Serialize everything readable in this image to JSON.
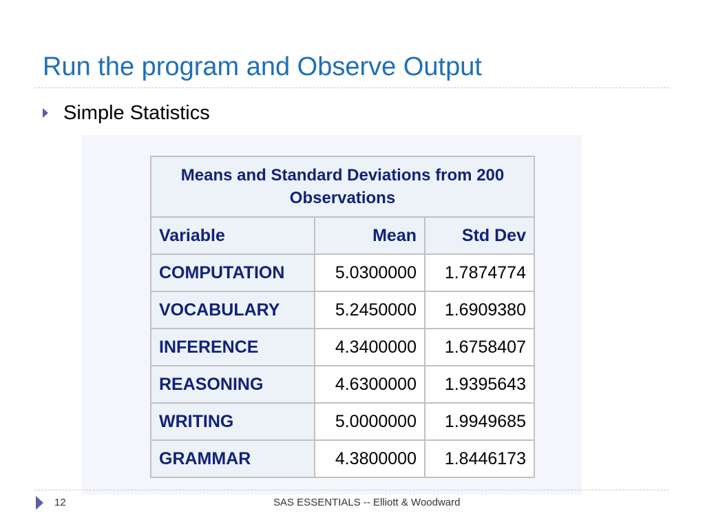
{
  "slide": {
    "title": "Run the program and Observe Output",
    "bullet": "Simple Statistics"
  },
  "table": {
    "caption": "Means and Standard Deviations from 200 Observations",
    "headers": [
      "Variable",
      "Mean",
      "Std Dev"
    ],
    "rows": [
      [
        "COMPUTATION",
        "5.0300000",
        "1.7874774"
      ],
      [
        "VOCABULARY",
        "5.2450000",
        "1.6909380"
      ],
      [
        "INFERENCE",
        "4.3400000",
        "1.6758407"
      ],
      [
        "REASONING",
        "4.6300000",
        "1.9395643"
      ],
      [
        "WRITING",
        "5.0000000",
        "1.9949685"
      ],
      [
        "GRAMMAR",
        "4.3800000",
        "1.8446173"
      ]
    ]
  },
  "footer": {
    "page_number": "12",
    "text": "SAS ESSENTIALS -- Elliott & Woodward"
  }
}
